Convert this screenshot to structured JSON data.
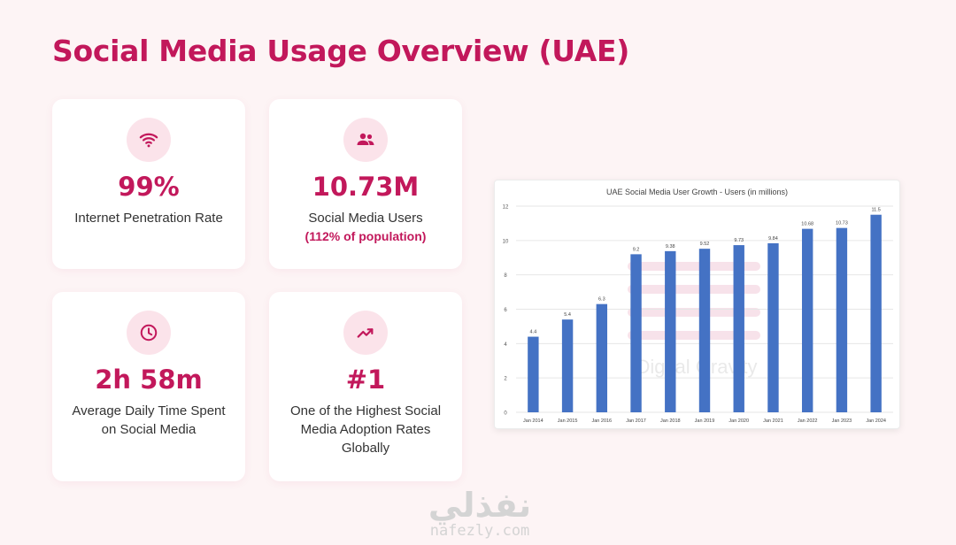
{
  "page": {
    "title": "Social Media Usage Overview (UAE)"
  },
  "cards": [
    {
      "icon": "wifi-icon",
      "value": "99%",
      "label": "Internet Penetration Rate",
      "sub": ""
    },
    {
      "icon": "people-icon",
      "value": "10.73M",
      "label": "Social Media Users",
      "sub": "(112% of population)"
    },
    {
      "icon": "clock-icon",
      "value": "2h 58m",
      "label": "Average Daily Time Spent on Social Media",
      "sub": ""
    },
    {
      "icon": "trending-up-icon",
      "value": "#1",
      "label": "One of the Highest Social Media Adoption Rates Globally",
      "sub": ""
    }
  ],
  "colors": {
    "accent": "#c2185b",
    "icon_bg": "#fbe3ea",
    "bar": "#4472c4",
    "background": "#fdf4f5"
  },
  "chart_data": {
    "type": "bar",
    "title": "UAE Social Media User Growth - Users (in millions)",
    "categories": [
      "Jan 2014",
      "Jan 2015",
      "Jan 2016",
      "Jan 2017",
      "Jan 2018",
      "Jan 2019",
      "Jan 2020",
      "Jan 2021",
      "Jan 2022",
      "Jan 2023",
      "Jan 2024"
    ],
    "values": [
      4.4,
      5.4,
      6.3,
      9.2,
      9.38,
      9.52,
      9.73,
      9.84,
      10.68,
      10.73,
      11.5
    ],
    "data_labels": [
      "4.4",
      "5.4",
      "6.3",
      "9.2",
      "9.38",
      "9.52",
      "9.73",
      "9.84",
      "10.68",
      "10.73",
      "11.5"
    ],
    "y_ticks": [
      0,
      2,
      4,
      6,
      8,
      10,
      12
    ],
    "ylim": [
      0,
      12
    ],
    "grid": true,
    "watermark": "Digital Gravity"
  },
  "watermark": {
    "arabic": "نفذلي",
    "latin": "nafezly.com"
  }
}
